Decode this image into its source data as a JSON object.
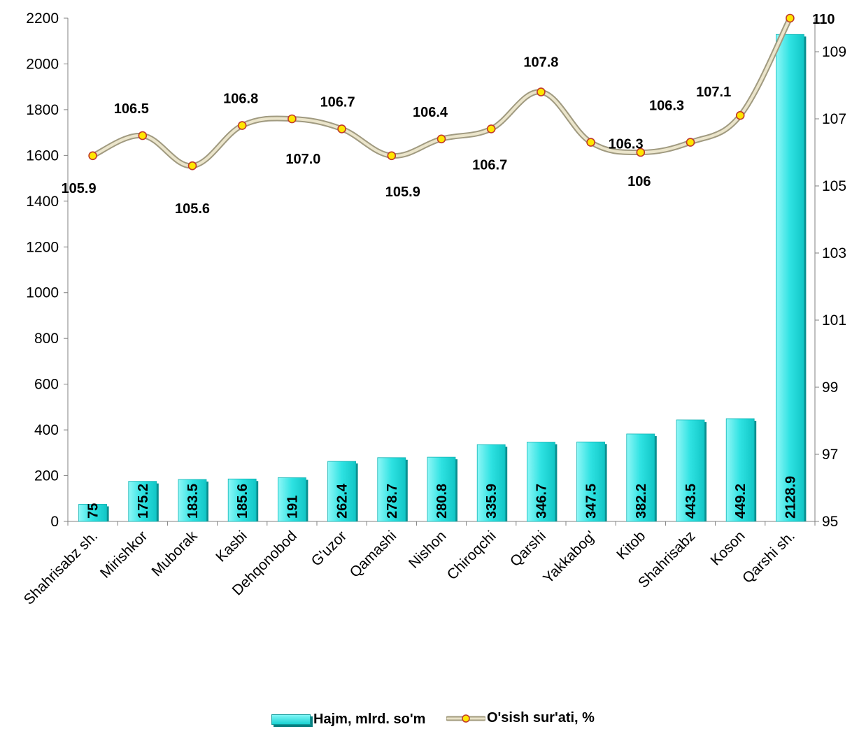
{
  "chart_data": {
    "type": "bar",
    "categories": [
      "Shahrisabz sh.",
      "Mirishkor",
      "Muborak",
      "Kasbi",
      "Dehqonobod",
      "G'uzor",
      "Qamashi",
      "Nishon",
      "Chiroqchi",
      "Qarshi",
      "Yakkabog'",
      "Kitob",
      "Shahrisabz",
      "Koson",
      "Qarshi sh."
    ],
    "series": [
      {
        "name": "Hajm, mlrd. so'm",
        "type": "bar",
        "axis": "left",
        "values": [
          75,
          175.2,
          183.5,
          185.6,
          191,
          262.4,
          278.7,
          280.8,
          335.9,
          346.7,
          347.5,
          382.2,
          443.5,
          449.2,
          2128.9
        ],
        "labels": [
          "75",
          "175.2",
          "183.5",
          "185.6",
          "191",
          "262.4",
          "278.7",
          "280.8",
          "335.9",
          "346.7",
          "347.5",
          "382.2",
          "443.5",
          "449.2",
          "2128.9"
        ],
        "color": "#19d3d3"
      },
      {
        "name": "O'sish sur'ati, %",
        "type": "line",
        "axis": "right",
        "values": [
          105.9,
          106.5,
          105.6,
          106.8,
          107.0,
          106.7,
          105.9,
          106.4,
          106.7,
          107.8,
          106.3,
          106,
          106.3,
          107.1,
          110
        ],
        "labels": [
          "105.9",
          "106.5",
          "105.6",
          "106.8",
          "107.0",
          "106.7",
          "105.9",
          "106.4",
          "106.7",
          "107.8",
          "106.3",
          "106",
          "106.3",
          "107.1",
          "110"
        ],
        "color": "#c9c1a5",
        "marker_color": "#ffe600"
      }
    ],
    "y_left": {
      "ylim": [
        0,
        2200
      ],
      "ticks": [
        0,
        200,
        400,
        600,
        800,
        1000,
        1200,
        1400,
        1600,
        1800,
        2000,
        2200
      ]
    },
    "y_right": {
      "ylim": [
        95,
        110
      ],
      "ticks": [
        95,
        97,
        99,
        101,
        103,
        105,
        107,
        109
      ]
    },
    "title": "",
    "xlabel": "",
    "ylabel": "",
    "grid": false,
    "legend": "bottom"
  }
}
